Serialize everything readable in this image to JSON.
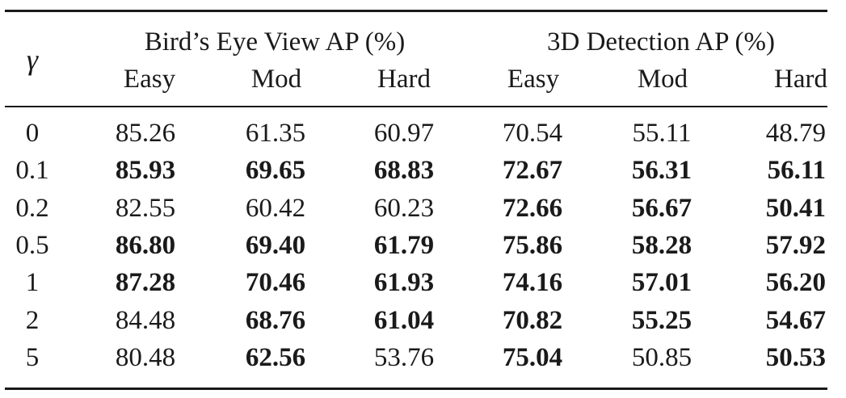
{
  "table": {
    "gamma_label": "γ",
    "group_headers": [
      "Bird’s Eye View AP (%)",
      "3D Detection AP (%)"
    ],
    "sub_headers": [
      "Easy",
      "Mod",
      "Hard",
      "Easy",
      "Mod",
      "Hard"
    ],
    "rows": [
      {
        "gamma": "0",
        "values": [
          "85.26",
          "61.35",
          "60.97",
          "70.54",
          "55.11",
          "48.79"
        ],
        "bold": [
          false,
          false,
          false,
          false,
          false,
          false
        ]
      },
      {
        "gamma": "0.1",
        "values": [
          "85.93",
          "69.65",
          "68.83",
          "72.67",
          "56.31",
          "56.11"
        ],
        "bold": [
          true,
          true,
          true,
          true,
          true,
          true
        ]
      },
      {
        "gamma": "0.2",
        "values": [
          "82.55",
          "60.42",
          "60.23",
          "72.66",
          "56.67",
          "50.41"
        ],
        "bold": [
          false,
          false,
          false,
          true,
          true,
          true
        ]
      },
      {
        "gamma": "0.5",
        "values": [
          "86.80",
          "69.40",
          "61.79",
          "75.86",
          "58.28",
          "57.92"
        ],
        "bold": [
          true,
          true,
          true,
          true,
          true,
          true
        ]
      },
      {
        "gamma": "1",
        "values": [
          "87.28",
          "70.46",
          "61.93",
          "74.16",
          "57.01",
          "56.20"
        ],
        "bold": [
          true,
          true,
          true,
          true,
          true,
          true
        ]
      },
      {
        "gamma": "2",
        "values": [
          "84.48",
          "68.76",
          "61.04",
          "70.82",
          "55.25",
          "54.67"
        ],
        "bold": [
          false,
          true,
          true,
          true,
          true,
          true
        ]
      },
      {
        "gamma": "5",
        "values": [
          "80.48",
          "62.56",
          "53.76",
          "75.04",
          "50.85",
          "50.53"
        ],
        "bold": [
          false,
          true,
          false,
          true,
          false,
          true
        ]
      }
    ]
  }
}
